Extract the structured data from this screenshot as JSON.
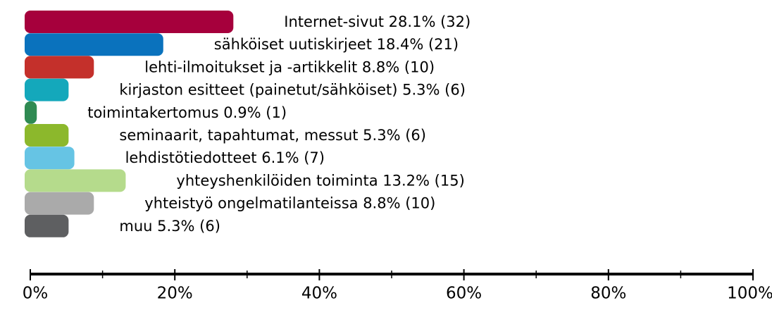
{
  "chart_data": {
    "type": "barh",
    "values": [
      28.1,
      18.4,
      8.8,
      5.3,
      0.9,
      5.3,
      6.1,
      13.2,
      8.8,
      5.3
    ],
    "value_labels": [
      "Internet-sivut 28.1% (32)",
      "sähköiset uutiskirjeet 18.4% (21)",
      "lehti-ilmoitukset ja -artikkelit 8.8% (10)",
      "kirjaston esitteet (painetut/sähköiset) 5.3% (6)",
      "toimintakertomus 0.9% (1)",
      "seminaarit, tapahtumat, messut 5.3% (6)",
      "lehdistötiedotteet 6.1% (7)",
      "yhteyshenkilöiden toiminta 13.2% (15)",
      "yhteistyö ongelmatilanteissa 8.8% (10)",
      "muu 5.3% (6)"
    ],
    "colors": [
      "#a6003c",
      "#0a72bd",
      "#c4302b",
      "#14a8bb",
      "#2f8a52",
      "#8cb82c",
      "#66c4e4",
      "#b5db8c",
      "#aaaaaa",
      "#5e5f61"
    ],
    "xlim": [
      0,
      100
    ],
    "xticks": [
      {
        "value": 0,
        "label": "0%"
      },
      {
        "value": 20,
        "label": "20%"
      },
      {
        "value": 40,
        "label": "40%"
      },
      {
        "value": 60,
        "label": "60%"
      },
      {
        "value": 80,
        "label": "80%"
      },
      {
        "value": 100,
        "label": "100%"
      }
    ],
    "xticks_minor": [
      10,
      30,
      50,
      70,
      90
    ]
  }
}
